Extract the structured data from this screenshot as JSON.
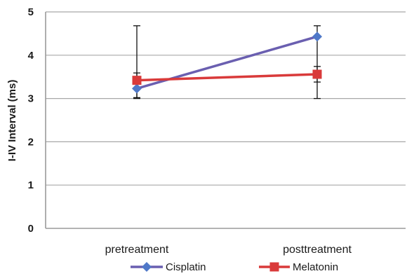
{
  "chart_data": {
    "type": "line",
    "title": "",
    "xlabel": "",
    "ylabel": "I-IV Interval (ms)",
    "categories": [
      "pretreatment",
      "posttreatment"
    ],
    "ylim": [
      0,
      5
    ],
    "yticks": [
      0,
      1,
      2,
      3,
      4,
      5
    ],
    "grid": true,
    "legend_position": "bottom",
    "series": [
      {
        "name": "Cisplatin",
        "color": "#6a5fb0",
        "marker": "diamond",
        "marker_color": "#4f78c8",
        "values": [
          3.23,
          4.43
        ],
        "error": [
          [
            0.23,
            1.45
          ],
          [
            1.43,
            0.25
          ]
        ]
      },
      {
        "name": "Melatonin",
        "color": "#d93a3a",
        "marker": "square",
        "marker_color": "#d93a3a",
        "values": [
          3.42,
          3.56
        ],
        "error": [
          [
            0.4,
            0.17
          ],
          [
            0.18,
            0.18
          ]
        ]
      }
    ]
  }
}
